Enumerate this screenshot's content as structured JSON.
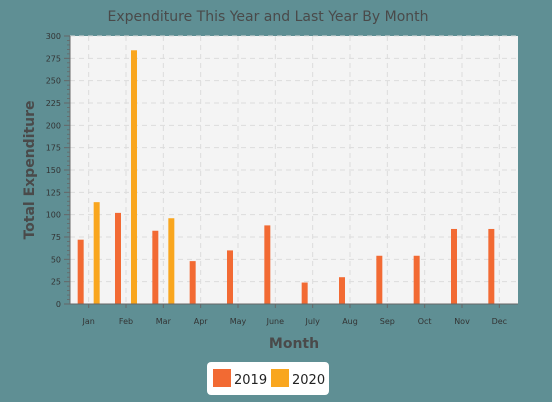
{
  "colors": {
    "background": "#5f8f94",
    "plot_background": "#f4f4f4",
    "grid": "#dcdcdc",
    "series_2019": "#f26a33",
    "series_2020": "#f9a61e",
    "legend_background": "#ffffff"
  },
  "chart_data": {
    "type": "bar",
    "title": "Expenditure This Year and Last Year By Month",
    "xlabel": "Month",
    "ylabel": "Total Expenditure",
    "ylim": [
      0,
      300
    ],
    "y_major_ticks": [
      0,
      25,
      50,
      75,
      100,
      125,
      150,
      175,
      200,
      225,
      250,
      275,
      300
    ],
    "grid": true,
    "legend_position": "bottom-center",
    "categories": [
      "Jan",
      "Feb",
      "Mar",
      "Apr",
      "May",
      "June",
      "July",
      "Aug",
      "Sep",
      "Oct",
      "Nov",
      "Dec"
    ],
    "series": [
      {
        "name": "2019",
        "values": [
          72,
          102,
          82,
          48,
          60,
          88,
          24,
          30,
          54,
          54,
          84,
          84
        ]
      },
      {
        "name": "2020",
        "values": [
          114,
          284,
          96,
          null,
          null,
          null,
          null,
          null,
          null,
          null,
          null,
          null
        ]
      }
    ]
  }
}
